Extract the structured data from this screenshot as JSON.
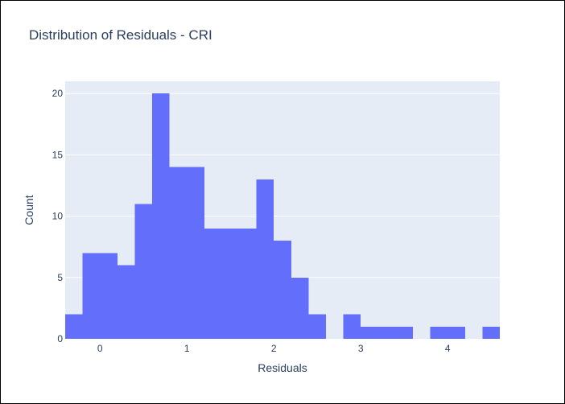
{
  "chart_data": {
    "type": "histogram",
    "title": "Distribution of Residuals - CRI",
    "xlabel": "Residuals",
    "ylabel": "Count",
    "bin_width": 0.2,
    "bins": [
      {
        "start": -0.4,
        "count": 2
      },
      {
        "start": -0.2,
        "count": 7
      },
      {
        "start": 0.0,
        "count": 7
      },
      {
        "start": 0.2,
        "count": 6
      },
      {
        "start": 0.4,
        "count": 11
      },
      {
        "start": 0.6,
        "count": 20
      },
      {
        "start": 0.8,
        "count": 14
      },
      {
        "start": 1.0,
        "count": 14
      },
      {
        "start": 1.2,
        "count": 9
      },
      {
        "start": 1.4,
        "count": 9
      },
      {
        "start": 1.6,
        "count": 9
      },
      {
        "start": 1.8,
        "count": 13
      },
      {
        "start": 2.0,
        "count": 8
      },
      {
        "start": 2.2,
        "count": 5
      },
      {
        "start": 2.4,
        "count": 2
      },
      {
        "start": 2.6,
        "count": 0
      },
      {
        "start": 2.8,
        "count": 2
      },
      {
        "start": 3.0,
        "count": 1
      },
      {
        "start": 3.2,
        "count": 1
      },
      {
        "start": 3.4,
        "count": 1
      },
      {
        "start": 3.6,
        "count": 0
      },
      {
        "start": 3.8,
        "count": 1
      },
      {
        "start": 4.0,
        "count": 1
      },
      {
        "start": 4.2,
        "count": 0
      },
      {
        "start": 4.4,
        "count": 1
      }
    ],
    "xlim": [
      -0.4,
      4.6
    ],
    "ylim": [
      0,
      21
    ],
    "xticks": [
      0,
      1,
      2,
      3,
      4
    ],
    "yticks": [
      0,
      5,
      10,
      15,
      20
    ],
    "grid": true,
    "colors": {
      "bar": "#636efa",
      "plot_bg": "#e5ecf6",
      "grid": "#ffffff",
      "text": "#2a3f5f"
    }
  }
}
